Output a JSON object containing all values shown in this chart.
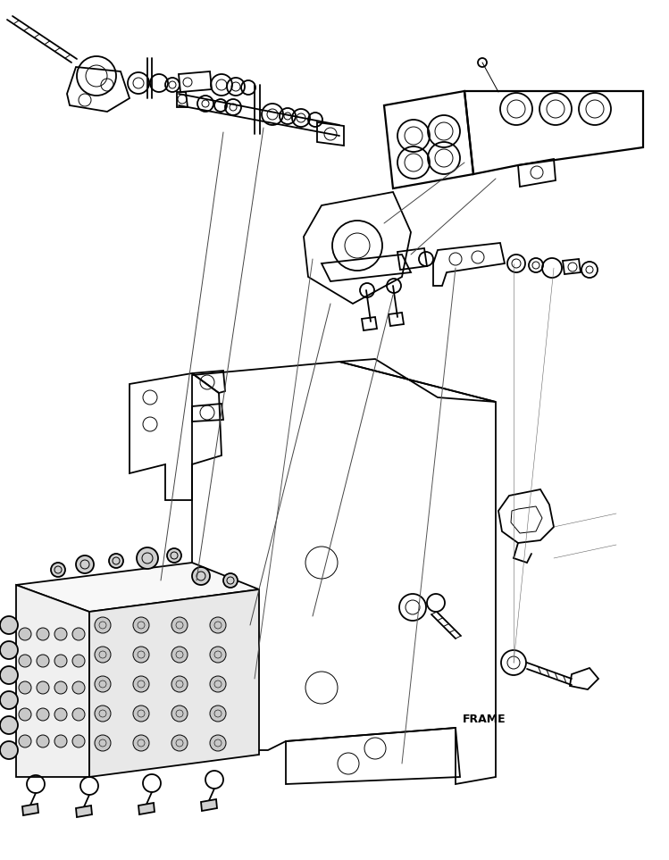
{
  "background_color": "#ffffff",
  "fig_width": 7.49,
  "fig_height": 9.63,
  "dpi": 100,
  "frame_label": "FRAME",
  "line_color": "#000000",
  "lw_main": 1.3,
  "lw_thin": 0.7,
  "lw_hair": 0.4
}
